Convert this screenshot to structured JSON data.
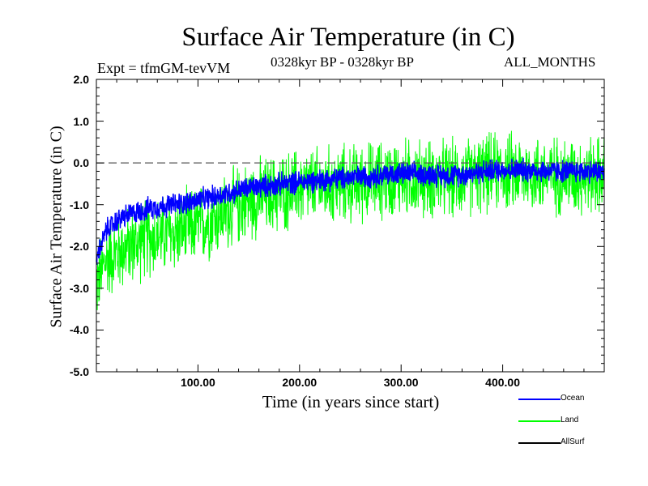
{
  "chart_data": {
    "type": "line",
    "title": "Surface Air Temperature (in C)",
    "subtitle_left": "Expt = tfmGM-tevVM",
    "subtitle_center": "0328kyr BP - 0328kyr BP",
    "subtitle_right": "ALL_MONTHS",
    "xlabel": "Time (in years since start)",
    "ylabel": "Surface Air Temperature (in C)",
    "xlim": [
      0,
      500
    ],
    "ylim": [
      -5.0,
      2.0
    ],
    "x_ticks": [
      "100.00",
      "200.00",
      "300.00",
      "400.00"
    ],
    "x_tick_values": [
      100,
      200,
      300,
      400
    ],
    "y_ticks": [
      "2.0",
      "1.0",
      "0.0",
      "-1.0",
      "-2.0",
      "-3.0",
      "-4.0",
      "-5.0"
    ],
    "y_tick_values": [
      2.0,
      1.0,
      0.0,
      -1.0,
      -2.0,
      -3.0,
      -4.0,
      -5.0
    ],
    "reference_line": {
      "y": 0.0,
      "style": "dashed"
    },
    "grid": false,
    "legend_position": "bottom-right",
    "series": [
      {
        "name": "Ocean",
        "color": "#0000ff",
        "x": [
          0,
          10,
          25,
          50,
          75,
          100,
          150,
          200,
          250,
          300,
          350,
          400,
          450,
          500
        ],
        "values": [
          -2.3,
          -1.6,
          -1.3,
          -1.1,
          -1.0,
          -0.9,
          -0.6,
          -0.45,
          -0.35,
          -0.25,
          -0.3,
          -0.15,
          -0.2,
          -0.2
        ]
      },
      {
        "name": "Land",
        "color": "#00ff00",
        "x": [
          0,
          10,
          25,
          50,
          75,
          100,
          150,
          200,
          250,
          300,
          350,
          400,
          450,
          500
        ],
        "values": [
          -2.9,
          -2.3,
          -2.1,
          -1.8,
          -1.7,
          -1.5,
          -0.9,
          -0.6,
          -0.5,
          -0.35,
          -0.4,
          -0.2,
          -0.3,
          -0.3
        ],
        "range": [
          -4.1,
          1.4
        ]
      },
      {
        "name": "AllSurf",
        "color": "#000000",
        "x": [],
        "values": []
      }
    ]
  }
}
